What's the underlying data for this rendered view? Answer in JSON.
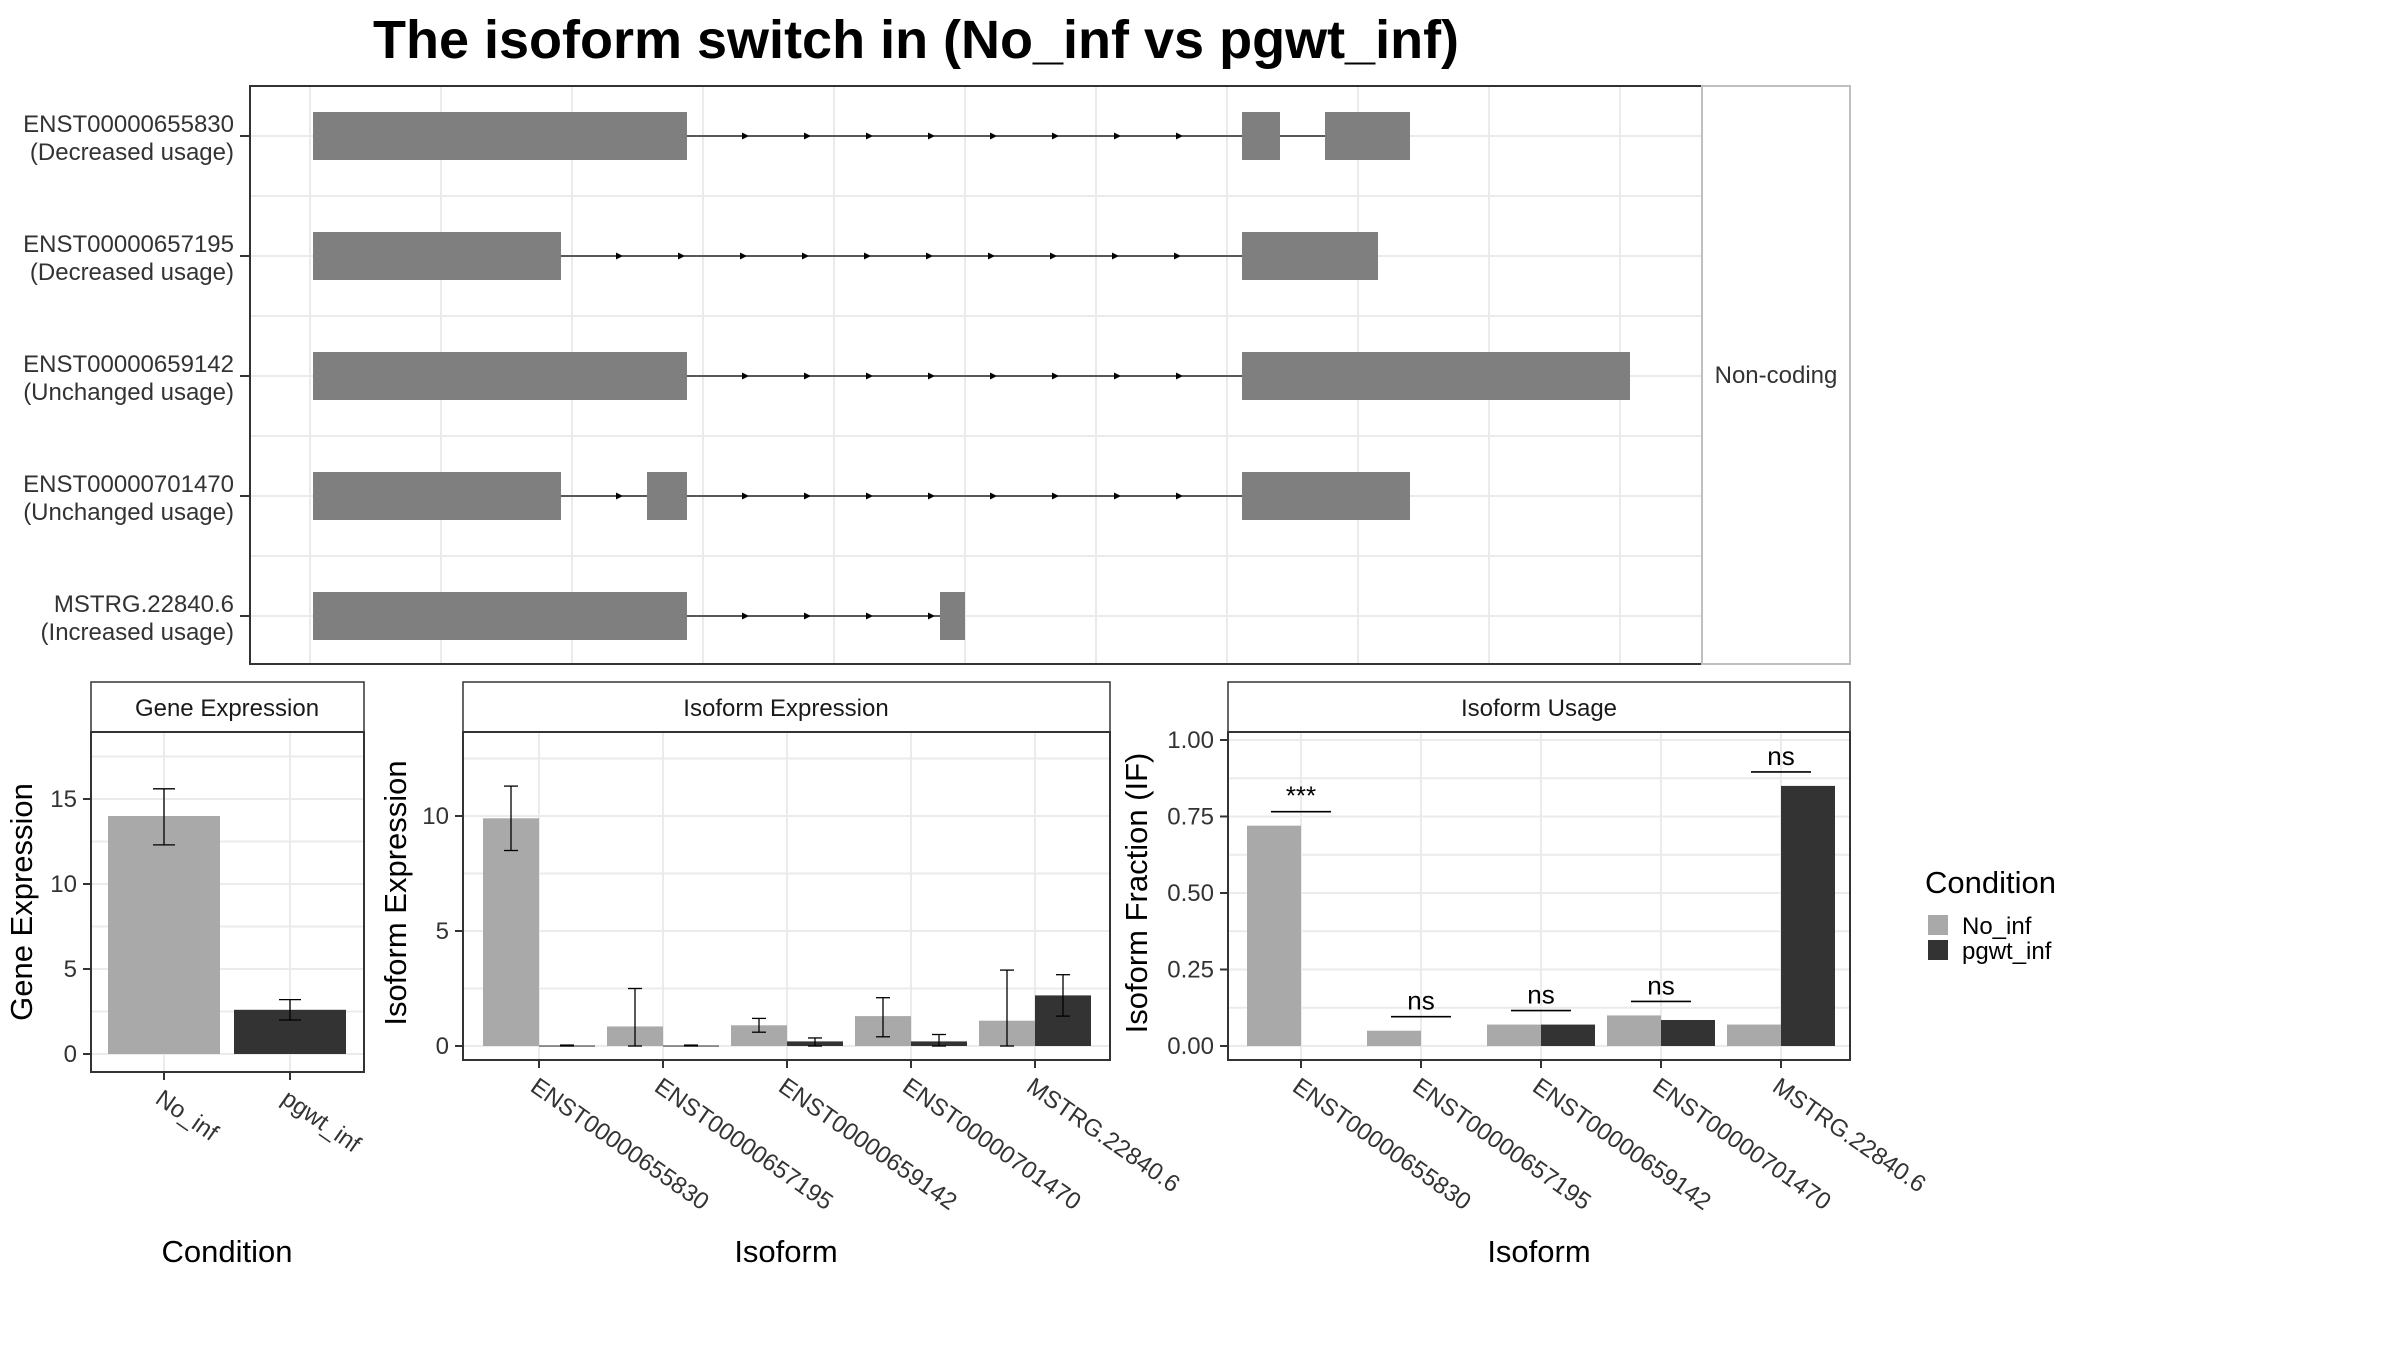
{
  "title": "The isoform switch in  (No_inf vs pgwt_inf)",
  "structure_panel": {
    "facet_label": "Non-coding",
    "isoforms": [
      {
        "id": "ENST00000655830",
        "usage": "(Decreased usage)"
      },
      {
        "id": "ENST00000657195",
        "usage": "(Decreased usage)"
      },
      {
        "id": "ENST00000659142",
        "usage": "(Unchanged usage)"
      },
      {
        "id": "ENST00000701470",
        "usage": "(Unchanged usage)"
      },
      {
        "id": "MSTRG.22840.6",
        "usage": "(Increased usage)"
      }
    ]
  },
  "legend": {
    "title": "Condition",
    "items": [
      {
        "label": "No_inf",
        "color": "#a9a9a9"
      },
      {
        "label": "pgwt_inf",
        "color": "#333333"
      }
    ]
  },
  "chart_data": [
    {
      "type": "bar",
      "title": "Gene Expression",
      "xlabel": "Condition",
      "ylabel": "Gene Expression",
      "ylim": [
        0,
        18
      ],
      "yticks": [
        "0",
        "5",
        "10",
        "15"
      ],
      "categories": [
        "No_inf",
        "pgwt_inf"
      ],
      "values": [
        14.0,
        2.6
      ],
      "error_low": [
        12.3,
        2.0
      ],
      "error_high": [
        15.6,
        3.2
      ],
      "colors": [
        "#a9a9a9",
        "#333333"
      ]
    },
    {
      "type": "bar",
      "title": "Isoform Expression",
      "xlabel": "Isoform",
      "ylabel": "Isoform Expression",
      "ylim": [
        0,
        13.5
      ],
      "yticks": [
        "0",
        "5",
        "10"
      ],
      "categories": [
        "ENST00000655830",
        "ENST00000657195",
        "ENST00000659142",
        "ENST00000701470",
        "MSTRG.22840.6"
      ],
      "series": [
        {
          "name": "No_inf",
          "values": [
            9.9,
            0.85,
            0.9,
            1.3,
            1.1
          ],
          "error_low": [
            8.5,
            0.0,
            0.6,
            0.4,
            0.0
          ],
          "error_high": [
            11.3,
            2.5,
            1.2,
            2.1,
            3.3
          ]
        },
        {
          "name": "pgwt_inf",
          "values": [
            0.02,
            0.02,
            0.2,
            0.2,
            2.2
          ],
          "error_low": [
            0.0,
            0.0,
            0.0,
            0.0,
            1.3
          ],
          "error_high": [
            0.04,
            0.04,
            0.35,
            0.5,
            3.1
          ]
        }
      ]
    },
    {
      "type": "bar",
      "title": "Isoform Usage",
      "xlabel": "Isoform",
      "ylabel": "Isoform Fraction (IF)",
      "ylim": [
        0,
        1.0
      ],
      "yticks": [
        "0.00",
        "0.25",
        "0.50",
        "0.75",
        "1.00"
      ],
      "categories": [
        "ENST00000655830",
        "ENST00000657195",
        "ENST00000659142",
        "ENST00000701470",
        "MSTRG.22840.6"
      ],
      "series": [
        {
          "name": "No_inf",
          "values": [
            0.72,
            0.05,
            0.07,
            0.1,
            0.07
          ]
        },
        {
          "name": "pgwt_inf",
          "values": [
            0.0,
            0.0,
            0.07,
            0.085,
            0.85
          ]
        }
      ],
      "significance": [
        "***",
        "ns",
        "ns",
        "ns",
        "ns"
      ]
    }
  ]
}
